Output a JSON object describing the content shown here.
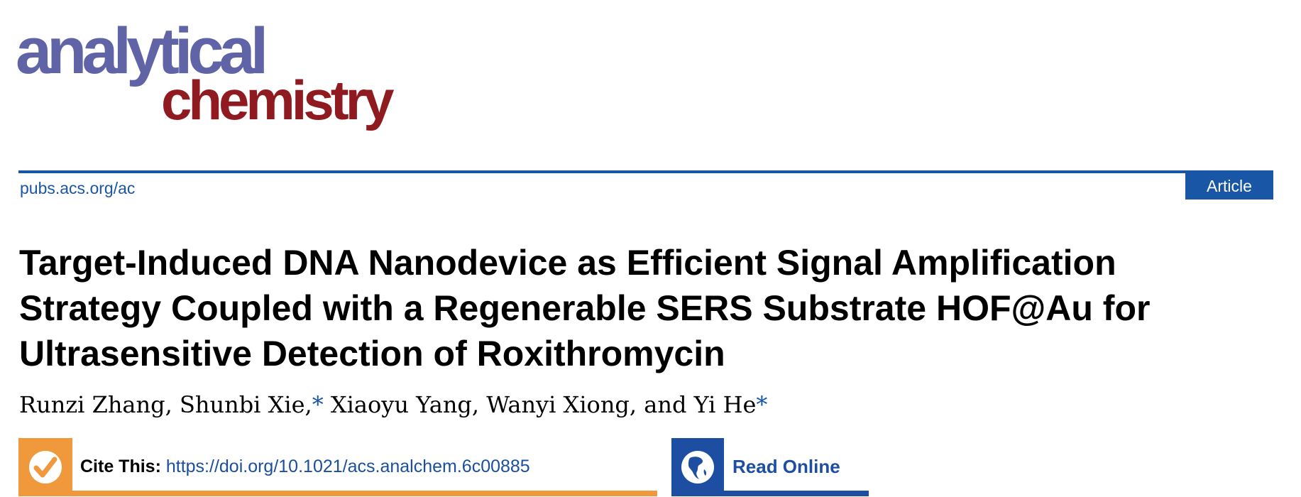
{
  "journal": {
    "logo_line1": "analytical",
    "logo_line2": "chemistry"
  },
  "header": {
    "site": "pubs.acs.org/ac",
    "article_type": "Article"
  },
  "article": {
    "title_lines": [
      "Target-Induced DNA Nanodevice as Efficient Signal Amplification",
      "Strategy Coupled with a Regenerable SERS Substrate HOF@Au for",
      "Ultrasensitive Detection of Roxithromycin"
    ],
    "authors": [
      {
        "name": "Runzi Zhang,",
        "star": ""
      },
      {
        "name": "Shunbi Xie,",
        "star": "*"
      },
      {
        "name": "Xiaoyu Yang,",
        "star": ""
      },
      {
        "name": "Wanyi Xiong, and",
        "star": ""
      },
      {
        "name": "Yi He",
        "star": "*"
      }
    ]
  },
  "cite": {
    "label": "Cite This:",
    "doi": "https://doi.org/10.1021/acs.analchem.6c00885",
    "icon": "check-circle-icon"
  },
  "read_online": {
    "label": "Read Online",
    "icon": "globe-icon"
  },
  "colors": {
    "accent_blue": "#1a56a6",
    "orange": "#f0993c",
    "logo_purple": "#6064a6",
    "logo_red": "#8f1a1f"
  }
}
